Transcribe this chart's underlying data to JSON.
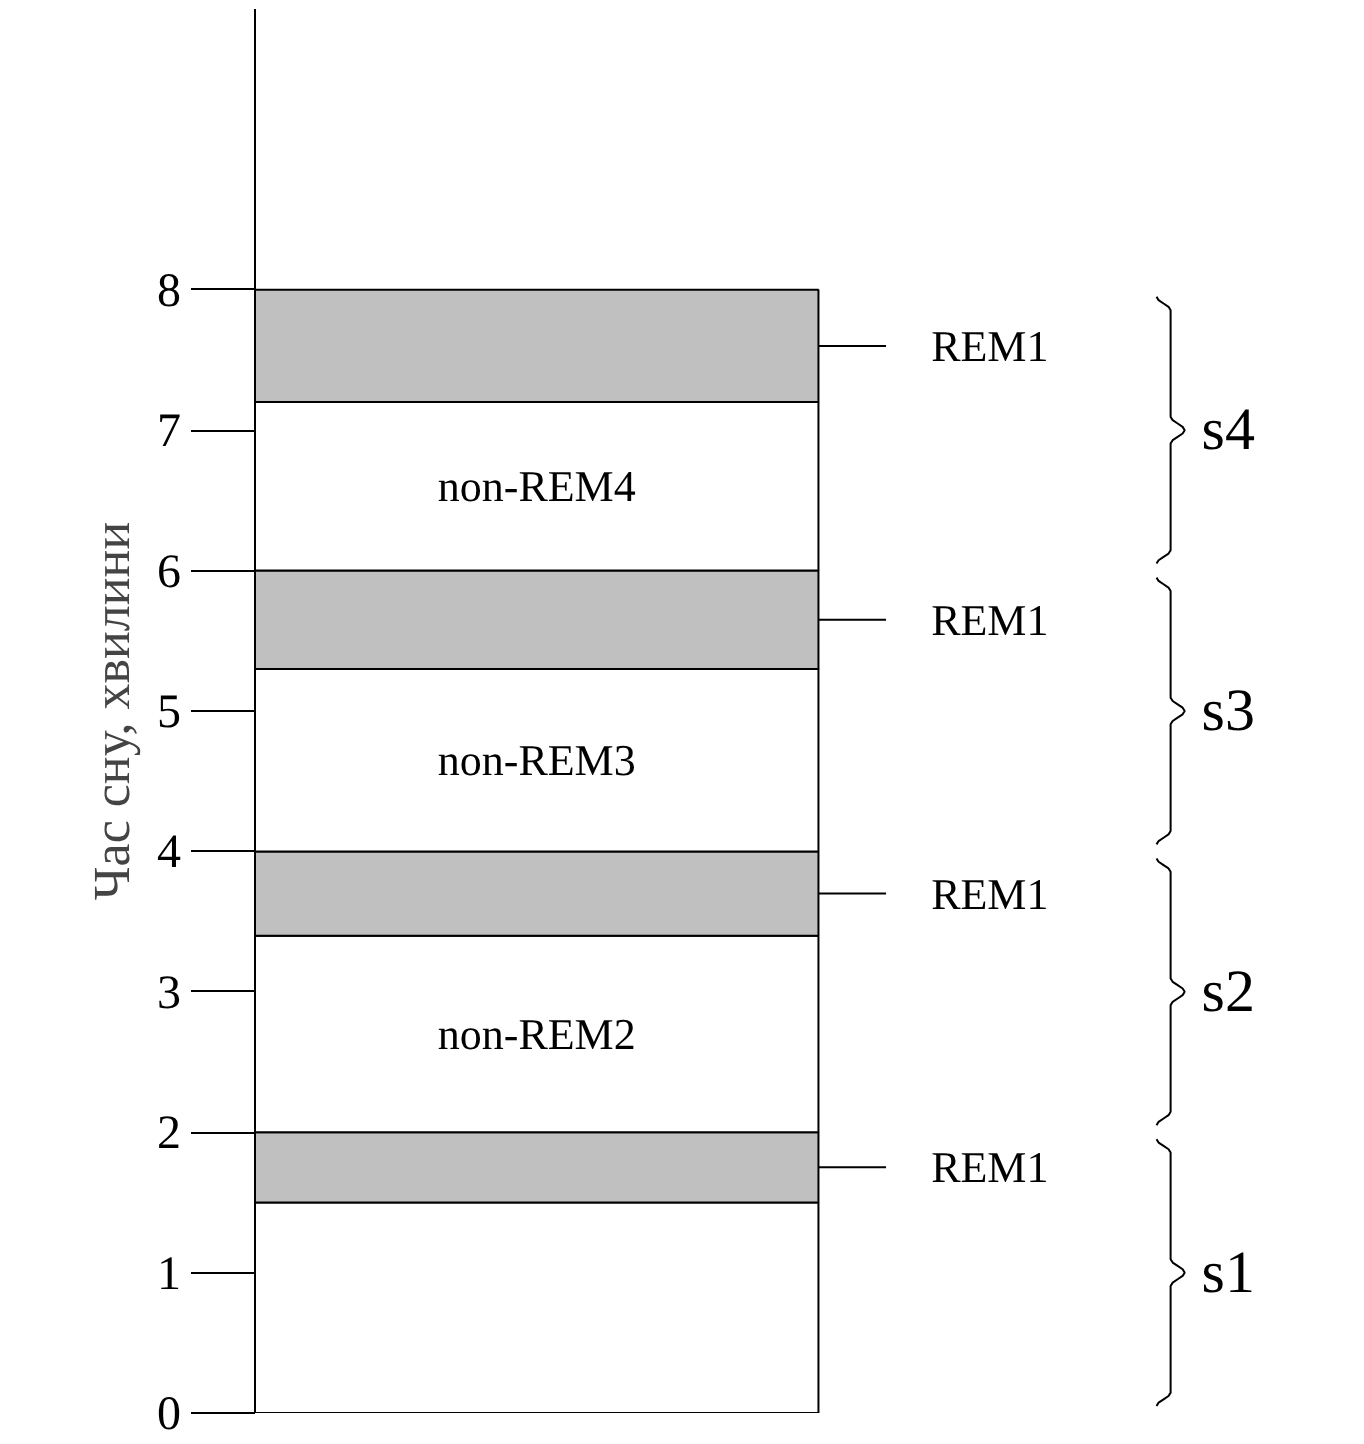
{
  "chart_data": {
    "type": "bar",
    "stacked": true,
    "categories": [
      null
    ],
    "ylabel": "Час сну, хвилини",
    "ylim": [
      0,
      10
    ],
    "yticks": [
      0,
      1,
      2,
      3,
      4,
      5,
      6,
      7,
      8
    ],
    "tick_labels": "y",
    "grid": false,
    "legend": "right",
    "series": [
      {
        "color": "#ffffff",
        "values": [
          1.5
        ]
      },
      {
        "name": "REM1",
        "color": "#c0c0c0",
        "values": [
          0.5
        ]
      },
      {
        "name": "non-REM2",
        "color": "#ffffff",
        "values": [
          1.4
        ]
      },
      {
        "name": "REM1",
        "color": "#c0c0c0",
        "values": [
          0.6
        ]
      },
      {
        "name": "non-REM3",
        "color": "#ffffff",
        "values": [
          1.3
        ]
      },
      {
        "name": "REM1",
        "color": "#c0c0c0",
        "values": [
          0.7
        ]
      },
      {
        "name": "non-REM4",
        "color": "#ffffff",
        "values": [
          1.2
        ]
      },
      {
        "name": "REM1",
        "color": "#c0c0c0",
        "values": [
          0.8
        ]
      }
    ],
    "annotations": [
      "s1",
      "s2",
      "s3",
      "s4"
    ]
  }
}
